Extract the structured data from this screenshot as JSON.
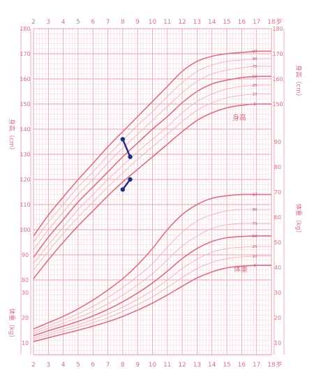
{
  "colors": {
    "background": "#ffffff",
    "grid": "#f2c0c8",
    "major_grid": "#e7a3af",
    "curve_major": "#d86f84",
    "curve_minor": "#eeb2be",
    "label": "#d86f84",
    "child": "#1c2f7f"
  },
  "chart_data": {
    "type": "line",
    "x_unit": "岁",
    "height_axis_label": "身高（cm）",
    "weight_axis_label": "体重（kg）",
    "height_block_label": "身高",
    "weight_block_label": "体重",
    "x_ticks": [
      "2",
      "3",
      "4",
      "5",
      "6",
      "7",
      "8",
      "9",
      "10",
      "11",
      "12",
      "13",
      "14",
      "15",
      "16",
      "17",
      "18"
    ],
    "x_range": [
      2,
      18
    ],
    "height_ticks_left": [
      "180",
      "170",
      "160",
      "150",
      "140",
      "130",
      "120",
      "110",
      "100",
      "90",
      "80"
    ],
    "height_ticks_right": [
      "180",
      "170",
      "160",
      "150"
    ],
    "height_range_cm": [
      80,
      180
    ],
    "weight_ticks_right": [
      "90",
      "80",
      "70",
      "60",
      "50",
      "40",
      "30",
      "20",
      "10"
    ],
    "weight_ticks_left": [
      "30",
      "20",
      "10"
    ],
    "weight_range_kg": [
      5,
      95
    ],
    "height_series": [
      {
        "name": "97",
        "values": [
          [
            2,
            97.5
          ],
          [
            3,
            105.8
          ],
          [
            4,
            113
          ],
          [
            5,
            119.9
          ],
          [
            6,
            126.4
          ],
          [
            7,
            133
          ],
          [
            8,
            139
          ],
          [
            9,
            145
          ],
          [
            10,
            151
          ],
          [
            11,
            157
          ],
          [
            12,
            163
          ],
          [
            13,
            167
          ],
          [
            14,
            169
          ],
          [
            15,
            170
          ],
          [
            16,
            170.5
          ],
          [
            17,
            171
          ],
          [
            18,
            171
          ]
        ]
      },
      {
        "name": "90",
        "values": [
          [
            2,
            95
          ],
          [
            3,
            103
          ],
          [
            4,
            110
          ],
          [
            5,
            117
          ],
          [
            6,
            123
          ],
          [
            7,
            129.5
          ],
          [
            8,
            135.5
          ],
          [
            9,
            141.5
          ],
          [
            10,
            147
          ],
          [
            11,
            153
          ],
          [
            12,
            158.5
          ],
          [
            13,
            163
          ],
          [
            14,
            165.5
          ],
          [
            15,
            167
          ],
          [
            16,
            167.5
          ],
          [
            17,
            168
          ],
          [
            18,
            168
          ]
        ]
      },
      {
        "name": "75",
        "values": [
          [
            2,
            92
          ],
          [
            3,
            100
          ],
          [
            4,
            107
          ],
          [
            5,
            114
          ],
          [
            6,
            120
          ],
          [
            7,
            126.5
          ],
          [
            8,
            132.5
          ],
          [
            9,
            138
          ],
          [
            10,
            143.5
          ],
          [
            11,
            149
          ],
          [
            12,
            154.5
          ],
          [
            13,
            159
          ],
          [
            14,
            162
          ],
          [
            15,
            163.5
          ],
          [
            16,
            164.5
          ],
          [
            17,
            165
          ],
          [
            18,
            165
          ]
        ]
      },
      {
        "name": "50",
        "values": [
          [
            2,
            89
          ],
          [
            3,
            97
          ],
          [
            4,
            104
          ],
          [
            5,
            111
          ],
          [
            6,
            117
          ],
          [
            7,
            123
          ],
          [
            8,
            129
          ],
          [
            9,
            134.5
          ],
          [
            10,
            140
          ],
          [
            11,
            145
          ],
          [
            12,
            150.5
          ],
          [
            13,
            155
          ],
          [
            14,
            158
          ],
          [
            15,
            159.5
          ],
          [
            16,
            160.5
          ],
          [
            17,
            161
          ],
          [
            18,
            161
          ]
        ]
      },
      {
        "name": "25",
        "values": [
          [
            2,
            86.5
          ],
          [
            3,
            94
          ],
          [
            4,
            101
          ],
          [
            5,
            108
          ],
          [
            6,
            114
          ],
          [
            7,
            120
          ],
          [
            8,
            125.5
          ],
          [
            9,
            131
          ],
          [
            10,
            136
          ],
          [
            11,
            141
          ],
          [
            12,
            146.5
          ],
          [
            13,
            151
          ],
          [
            14,
            154
          ],
          [
            15,
            156
          ],
          [
            16,
            157
          ],
          [
            17,
            157.5
          ],
          [
            18,
            157.5
          ]
        ]
      },
      {
        "name": "10",
        "values": [
          [
            2,
            84
          ],
          [
            3,
            91.5
          ],
          [
            4,
            98.5
          ],
          [
            5,
            105
          ],
          [
            6,
            111
          ],
          [
            7,
            117
          ],
          [
            8,
            122.5
          ],
          [
            9,
            128
          ],
          [
            10,
            133
          ],
          [
            11,
            138
          ],
          [
            12,
            143
          ],
          [
            13,
            147.5
          ],
          [
            14,
            150.5
          ],
          [
            15,
            152.5
          ],
          [
            16,
            153.5
          ],
          [
            17,
            154
          ],
          [
            18,
            154
          ]
        ]
      },
      {
        "name": "3",
        "values": [
          [
            2,
            80.5
          ],
          [
            3,
            88
          ],
          [
            4,
            95
          ],
          [
            5,
            101.5
          ],
          [
            6,
            107.5
          ],
          [
            7,
            113.5
          ],
          [
            8,
            119
          ],
          [
            9,
            124
          ],
          [
            10,
            129
          ],
          [
            11,
            134
          ],
          [
            12,
            139
          ],
          [
            13,
            143.5
          ],
          [
            14,
            146.5
          ],
          [
            15,
            148.5
          ],
          [
            16,
            149.5
          ],
          [
            17,
            150
          ],
          [
            18,
            150
          ]
        ]
      }
    ],
    "weight_series": [
      {
        "name": "97",
        "values": [
          [
            2,
            15.5
          ],
          [
            3,
            18
          ],
          [
            4,
            20.5
          ],
          [
            5,
            23.5
          ],
          [
            6,
            27
          ],
          [
            7,
            31
          ],
          [
            8,
            35.5
          ],
          [
            9,
            41
          ],
          [
            10,
            47.5
          ],
          [
            11,
            55
          ],
          [
            12,
            61
          ],
          [
            13,
            65
          ],
          [
            14,
            67.5
          ],
          [
            15,
            68.5
          ],
          [
            16,
            69
          ],
          [
            17,
            69
          ],
          [
            18,
            69
          ]
        ]
      },
      {
        "name": "90",
        "values": [
          [
            2,
            14.5
          ],
          [
            3,
            16.8
          ],
          [
            4,
            19
          ],
          [
            5,
            21.5
          ],
          [
            6,
            24.5
          ],
          [
            7,
            28
          ],
          [
            8,
            32
          ],
          [
            9,
            36.5
          ],
          [
            10,
            41.5
          ],
          [
            11,
            48
          ],
          [
            12,
            54
          ],
          [
            13,
            58.5
          ],
          [
            14,
            61
          ],
          [
            15,
            62.5
          ],
          [
            16,
            63
          ],
          [
            17,
            63
          ],
          [
            18,
            63
          ]
        ]
      },
      {
        "name": "75",
        "values": [
          [
            2,
            13.7
          ],
          [
            3,
            15.8
          ],
          [
            4,
            17.8
          ],
          [
            5,
            20
          ],
          [
            6,
            22.5
          ],
          [
            7,
            25.5
          ],
          [
            8,
            29
          ],
          [
            9,
            33
          ],
          [
            10,
            37.5
          ],
          [
            11,
            43
          ],
          [
            12,
            48.5
          ],
          [
            13,
            52.5
          ],
          [
            14,
            55.5
          ],
          [
            15,
            57
          ],
          [
            16,
            57.5
          ],
          [
            17,
            57.5
          ],
          [
            18,
            57.5
          ]
        ]
      },
      {
        "name": "50",
        "values": [
          [
            2,
            12.8
          ],
          [
            3,
            14.8
          ],
          [
            4,
            16.6
          ],
          [
            5,
            18.5
          ],
          [
            6,
            20.7
          ],
          [
            7,
            23.3
          ],
          [
            8,
            26.3
          ],
          [
            9,
            29.8
          ],
          [
            10,
            33.8
          ],
          [
            11,
            38.5
          ],
          [
            12,
            43.5
          ],
          [
            13,
            47.5
          ],
          [
            14,
            50.3
          ],
          [
            15,
            51.8
          ],
          [
            16,
            52.3
          ],
          [
            17,
            52.5
          ],
          [
            18,
            52.5
          ]
        ]
      },
      {
        "name": "25",
        "values": [
          [
            2,
            12
          ],
          [
            3,
            13.8
          ],
          [
            4,
            15.5
          ],
          [
            5,
            17.2
          ],
          [
            6,
            19.2
          ],
          [
            7,
            21.5
          ],
          [
            8,
            24.2
          ],
          [
            9,
            27.3
          ],
          [
            10,
            30.8
          ],
          [
            11,
            35
          ],
          [
            12,
            39.5
          ],
          [
            13,
            43.3
          ],
          [
            14,
            46
          ],
          [
            15,
            47.5
          ],
          [
            16,
            48
          ],
          [
            17,
            48.3
          ],
          [
            18,
            48.3
          ]
        ]
      },
      {
        "name": "10",
        "values": [
          [
            2,
            11.3
          ],
          [
            3,
            13
          ],
          [
            4,
            14.6
          ],
          [
            5,
            16.2
          ],
          [
            6,
            18
          ],
          [
            7,
            20
          ],
          [
            8,
            22.5
          ],
          [
            9,
            25.2
          ],
          [
            10,
            28.3
          ],
          [
            11,
            32
          ],
          [
            12,
            36
          ],
          [
            13,
            39.5
          ],
          [
            14,
            42
          ],
          [
            15,
            43.5
          ],
          [
            16,
            44.2
          ],
          [
            17,
            44.5
          ],
          [
            18,
            44.5
          ]
        ]
      },
      {
        "name": "3",
        "values": [
          [
            2,
            10.5
          ],
          [
            3,
            12
          ],
          [
            4,
            13.5
          ],
          [
            5,
            15
          ],
          [
            6,
            16.6
          ],
          [
            7,
            18.4
          ],
          [
            8,
            20.5
          ],
          [
            9,
            23
          ],
          [
            10,
            25.8
          ],
          [
            11,
            29
          ],
          [
            12,
            32.5
          ],
          [
            13,
            35.8
          ],
          [
            14,
            38.2
          ],
          [
            15,
            39.8
          ],
          [
            16,
            40.5
          ],
          [
            17,
            40.8
          ],
          [
            18,
            40.8
          ]
        ]
      }
    ],
    "child_height_points": [
      [
        8,
        116
      ],
      [
        8.5,
        120
      ]
    ],
    "child_weight_points": [
      [
        8,
        91
      ],
      [
        8.5,
        84
      ]
    ]
  }
}
